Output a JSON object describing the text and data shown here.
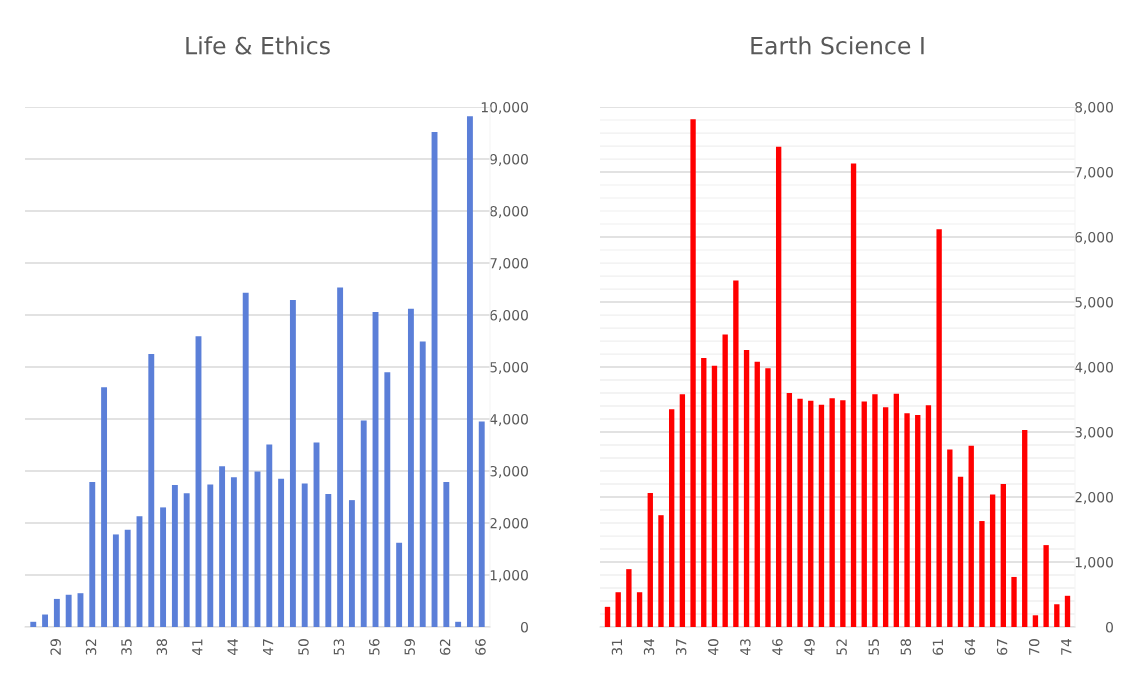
{
  "chart_data": [
    {
      "type": "bar",
      "title": "Life & Ethics",
      "color": "#5b7fd8",
      "categories": [
        null,
        null,
        "29",
        null,
        null,
        "32",
        null,
        null,
        "35",
        null,
        null,
        "38",
        null,
        null,
        "41",
        null,
        null,
        "44",
        null,
        null,
        "47",
        null,
        null,
        "50",
        null,
        null,
        "53",
        null,
        null,
        "56",
        null,
        null,
        "59",
        null,
        null,
        "62",
        null,
        null,
        "66"
      ],
      "values": [
        100,
        240,
        540,
        620,
        650,
        2790,
        4610,
        1780,
        1870,
        2130,
        5250,
        2300,
        2730,
        2570,
        5590,
        2740,
        3090,
        2880,
        6430,
        2990,
        3510,
        2850,
        6290,
        2760,
        3550,
        2560,
        6530,
        2440,
        3970,
        6060,
        4900,
        1620,
        6120,
        5490,
        9520,
        2790,
        100,
        9820,
        3950
      ],
      "ylim": [
        0,
        10000
      ],
      "yticks": [
        0,
        {
          "value": 1000,
          "label": "1,000"
        },
        {
          "value": 2000,
          "label": "2,000"
        },
        {
          "value": 3000,
          "label": "3,000"
        },
        {
          "value": 4000,
          "label": "4,000"
        },
        {
          "value": 5000,
          "label": "5,000"
        },
        {
          "value": 6000,
          "label": "6,000"
        },
        {
          "value": 7000,
          "label": "7,000"
        },
        {
          "value": 8000,
          "label": "8,000"
        },
        {
          "value": 9000,
          "label": "9,000"
        },
        {
          "value": 10000,
          "label": "10,000"
        }
      ],
      "grid": "y"
    },
    {
      "type": "bar",
      "title": "Earth Science Ⅰ",
      "color": "#ff0000",
      "categories": [
        null,
        "31",
        null,
        null,
        "34",
        null,
        null,
        "37",
        null,
        null,
        "40",
        null,
        null,
        "43",
        null,
        null,
        "46",
        null,
        null,
        "49",
        null,
        null,
        "52",
        null,
        null,
        "55",
        null,
        null,
        "58",
        null,
        null,
        "61",
        null,
        null,
        "64",
        null,
        null,
        "67",
        null,
        null,
        "70",
        null,
        null,
        "74"
      ],
      "values": [
        310,
        535,
        890,
        535,
        2060,
        1720,
        3350,
        3580,
        7810,
        4140,
        4020,
        4500,
        5330,
        4260,
        4080,
        3980,
        7390,
        3600,
        3510,
        3480,
        3420,
        3520,
        3490,
        7130,
        3470,
        3580,
        3380,
        3590,
        3290,
        3260,
        3410,
        6120,
        2730,
        2310,
        2790,
        1630,
        2040,
        2200,
        770,
        3030,
        180,
        1260,
        350,
        480
      ],
      "ylim": [
        0,
        8000
      ],
      "yticks": [
        0,
        {
          "value": 200,
          "label": null
        },
        {
          "value": 400,
          "label": null
        },
        {
          "value": 600,
          "label": null
        },
        {
          "value": 800,
          "label": null
        },
        {
          "value": 1000,
          "label": "1,000"
        },
        {
          "value": 1200,
          "label": null
        },
        {
          "value": 1400,
          "label": null
        },
        {
          "value": 1600,
          "label": null
        },
        {
          "value": 1800,
          "label": null
        },
        {
          "value": 2000,
          "label": "2,000"
        },
        {
          "value": 2200,
          "label": null
        },
        {
          "value": 2400,
          "label": null
        },
        {
          "value": 2600,
          "label": null
        },
        {
          "value": 2800,
          "label": null
        },
        {
          "value": 3000,
          "label": "3,000"
        },
        {
          "value": 3200,
          "label": null
        },
        {
          "value": 3400,
          "label": null
        },
        {
          "value": 3600,
          "label": null
        },
        {
          "value": 3800,
          "label": null
        },
        {
          "value": 4000,
          "label": "4,000"
        },
        {
          "value": 4200,
          "label": null
        },
        {
          "value": 4400,
          "label": null
        },
        {
          "value": 4600,
          "label": null
        },
        {
          "value": 4800,
          "label": null
        },
        {
          "value": 5000,
          "label": "5,000"
        },
        {
          "value": 5200,
          "label": null
        },
        {
          "value": 5400,
          "label": null
        },
        {
          "value": 5600,
          "label": null
        },
        {
          "value": 5800,
          "label": null
        },
        {
          "value": 6000,
          "label": "6,000"
        },
        {
          "value": 6200,
          "label": null
        },
        {
          "value": 6400,
          "label": null
        },
        {
          "value": 6600,
          "label": null
        },
        {
          "value": 6800,
          "label": null
        },
        {
          "value": 7000,
          "label": "7,000"
        },
        {
          "value": 7200,
          "label": null
        },
        {
          "value": 7400,
          "label": null
        },
        {
          "value": 7600,
          "label": null
        },
        {
          "value": 7800,
          "label": null
        },
        {
          "value": 8000,
          "label": "8,000"
        }
      ],
      "grid": "y"
    }
  ]
}
